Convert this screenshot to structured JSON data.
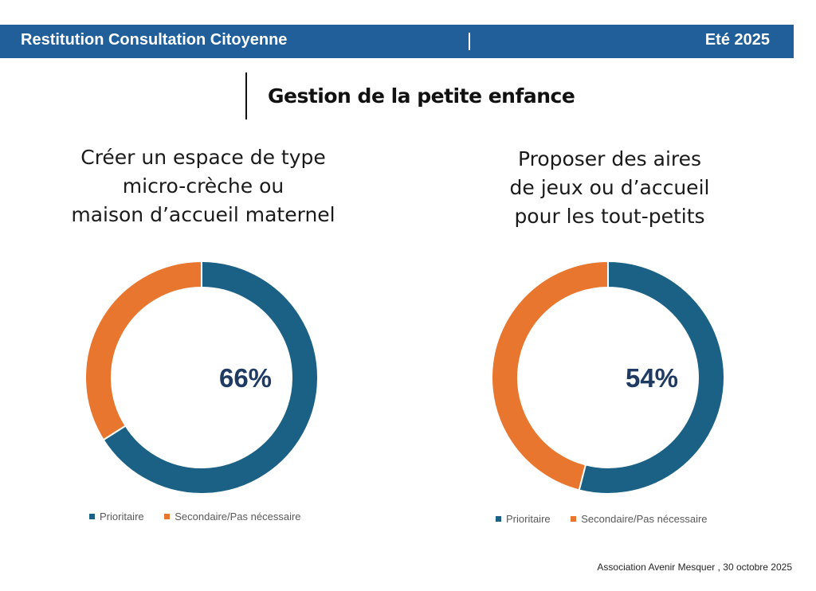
{
  "header": {
    "title": "Restitution Consultation Citoyenne",
    "date": "Eté 2025",
    "background": "#215f9a"
  },
  "section": {
    "title": "Gestion de la petite enfance"
  },
  "footer": {
    "text": "Association Avenir Mesquer , 30 octobre 2025"
  },
  "colors": {
    "prioritaire": "#1b6185",
    "secondaire": "#e9762f",
    "center_label": "#1f3b63"
  },
  "chart_data": [
    {
      "type": "pie",
      "variant": "donut",
      "title_lines": [
        "Créer un espace de type",
        "micro-crèche ou",
        "maison d’accueil maternel"
      ],
      "categories": [
        "Prioritaire",
        "Secondaire/Pas nécessaire"
      ],
      "values": [
        66,
        34
      ],
      "center_label": "66%",
      "legend": {
        "position": "bottom",
        "entries": [
          "Prioritaire",
          "Secondaire/Pas nécessaire"
        ]
      }
    },
    {
      "type": "pie",
      "variant": "donut",
      "title_lines": [
        "Proposer des aires",
        "de jeux ou d’accueil",
        "pour les tout-petits"
      ],
      "categories": [
        "Prioritaire",
        "Secondaire/Pas nécessaire"
      ],
      "values": [
        54,
        46
      ],
      "center_label": "54%",
      "legend": {
        "position": "bottom",
        "entries": [
          "Prioritaire",
          "Secondaire/Pas nécessaire"
        ]
      }
    }
  ]
}
